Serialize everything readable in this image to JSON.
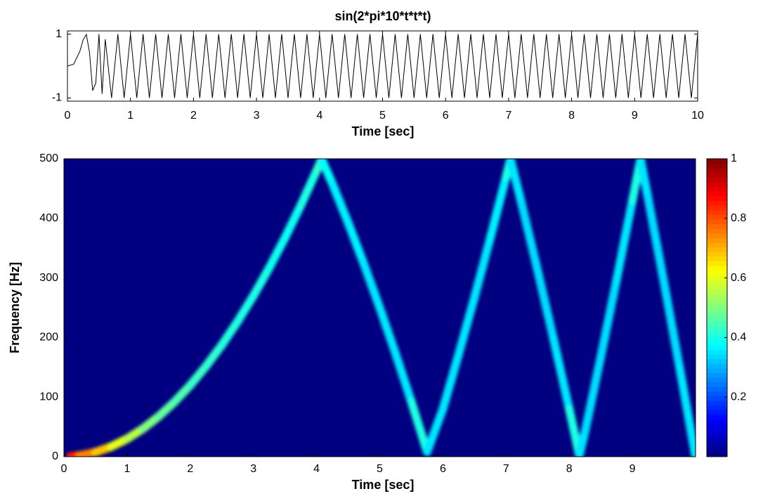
{
  "chart_data": [
    {
      "type": "line",
      "title": "sin(2*pi*10*t*t*t)",
      "xlabel": "Time [sec]",
      "color": "#000000",
      "xlim": [
        0,
        10
      ],
      "xticks": [
        0,
        1,
        2,
        3,
        4,
        5,
        6,
        7,
        8,
        9,
        10
      ],
      "ylim": [
        -1.1,
        1.1
      ],
      "yticks": [
        -1,
        1
      ],
      "x": [
        0,
        0.1,
        0.2,
        0.25,
        0.3,
        0.35,
        0.4,
        0.45,
        0.5,
        0.55,
        0.6,
        0.7,
        0.8,
        0.9,
        1.0,
        1.1,
        1.2,
        1.3,
        1.4,
        1.5,
        1.6,
        1.7,
        1.8,
        1.9,
        2.0,
        2.1,
        2.2,
        2.3,
        2.4,
        2.5,
        2.6,
        2.7,
        2.8,
        2.9,
        3.0,
        3.1,
        3.2,
        3.3,
        3.4,
        3.5,
        3.6,
        3.7,
        3.8,
        3.9,
        4.0,
        4.1,
        4.2,
        4.3,
        4.4,
        4.5,
        4.6,
        4.7,
        4.8,
        4.9,
        5.0,
        5.1,
        5.2,
        5.3,
        5.4,
        5.5,
        5.6,
        5.7,
        5.8,
        5.9,
        6.0,
        6.1,
        6.2,
        6.3,
        6.4,
        6.5,
        6.6,
        6.7,
        6.8,
        6.9,
        7.0,
        7.1,
        7.2,
        7.3,
        7.4,
        7.5,
        7.6,
        7.7,
        7.8,
        7.9,
        8.0,
        8.1,
        8.2,
        8.3,
        8.4,
        8.5,
        8.6,
        8.7,
        8.8,
        8.9,
        9.0,
        9.1,
        9.2,
        9.3,
        9.4,
        9.5,
        9.6,
        9.7,
        9.8,
        9.9,
        10.0
      ],
      "values": [
        0,
        0.06,
        0.48,
        0.83,
        0.99,
        0.43,
        -0.77,
        -0.53,
        1.0,
        -0.87,
        0.84,
        -1,
        1,
        -1,
        1,
        -1,
        1,
        -1,
        1,
        -1,
        1,
        -1,
        1,
        -1,
        1,
        -1,
        1,
        -1,
        1,
        -1,
        1,
        -1,
        1,
        -1,
        1,
        -1,
        1,
        -1,
        1,
        -1,
        1,
        -1,
        1,
        -1,
        1,
        -1,
        1,
        -1,
        1,
        -1,
        1,
        -1,
        1,
        -1,
        1,
        -1,
        1,
        -1,
        1,
        -1,
        1,
        -1,
        1,
        -1,
        1,
        -1,
        1,
        -1,
        1,
        -1,
        1,
        -1,
        1,
        -1,
        1,
        -1,
        1,
        -1,
        1,
        -1,
        1,
        -1,
        1,
        -1,
        1,
        -1,
        1,
        -1,
        1,
        -1,
        1,
        -1,
        1,
        -1,
        1,
        -1,
        1,
        -1,
        1,
        -1,
        1,
        -1,
        1,
        -1,
        1
      ]
    },
    {
      "type": "spectrogram",
      "xlabel": "Time [sec]",
      "ylabel": "Frequency [Hz]",
      "colormap": "jet",
      "xlim": [
        0,
        10
      ],
      "xticks": [
        0,
        1,
        2,
        3,
        4,
        5,
        6,
        7,
        8,
        9
      ],
      "ylim": [
        0,
        500
      ],
      "yticks": [
        0,
        100,
        200,
        300,
        400,
        500
      ],
      "clim": [
        0,
        1
      ],
      "cticks": [
        0.2,
        0.4,
        0.6,
        0.8,
        1
      ],
      "x": [
        0.1,
        0.25,
        0.5,
        0.75,
        1,
        1.25,
        1.5,
        1.75,
        2,
        2.25,
        2.5,
        2.75,
        3,
        3.25,
        3.5,
        3.75,
        4,
        4.08,
        4.25,
        4.5,
        4.75,
        5,
        5.25,
        5.5,
        5.75,
        6,
        6.25,
        6.5,
        6.75,
        7,
        7.07,
        7.25,
        7.5,
        7.75,
        8,
        8.16,
        8.25,
        8.5,
        8.75,
        9,
        9.13,
        9.25,
        9.5,
        9.75,
        10
      ],
      "values": [
        0.3,
        1.9,
        7.5,
        16.9,
        30,
        46.9,
        67.5,
        91.9,
        120,
        151.9,
        187.5,
        226.9,
        270,
        316.9,
        367.5,
        421.9,
        480,
        499.4,
        458.1,
        392.5,
        323.1,
        250,
        173.1,
        92.5,
        8.1,
        80,
        171.9,
        267.5,
        366.9,
        470,
        499.6,
        423.1,
        312.5,
        198.1,
        80,
        2.4,
        41.9,
        167.5,
        296.9,
        430,
        499.3,
        433.1,
        292.5,
        148.1,
        0
      ],
      "intensity": [
        0.9,
        0.85,
        0.75,
        0.68,
        0.6,
        0.55,
        0.5,
        0.47,
        0.45,
        0.43,
        0.42,
        0.41,
        0.4,
        0.4,
        0.39,
        0.39,
        0.4,
        0.42,
        0.38,
        0.36,
        0.36,
        0.35,
        0.35,
        0.35,
        0.4,
        0.35,
        0.35,
        0.35,
        0.35,
        0.36,
        0.4,
        0.35,
        0.34,
        0.34,
        0.35,
        0.4,
        0.35,
        0.34,
        0.34,
        0.35,
        0.4,
        0.35,
        0.34,
        0.34,
        0.35
      ]
    }
  ]
}
